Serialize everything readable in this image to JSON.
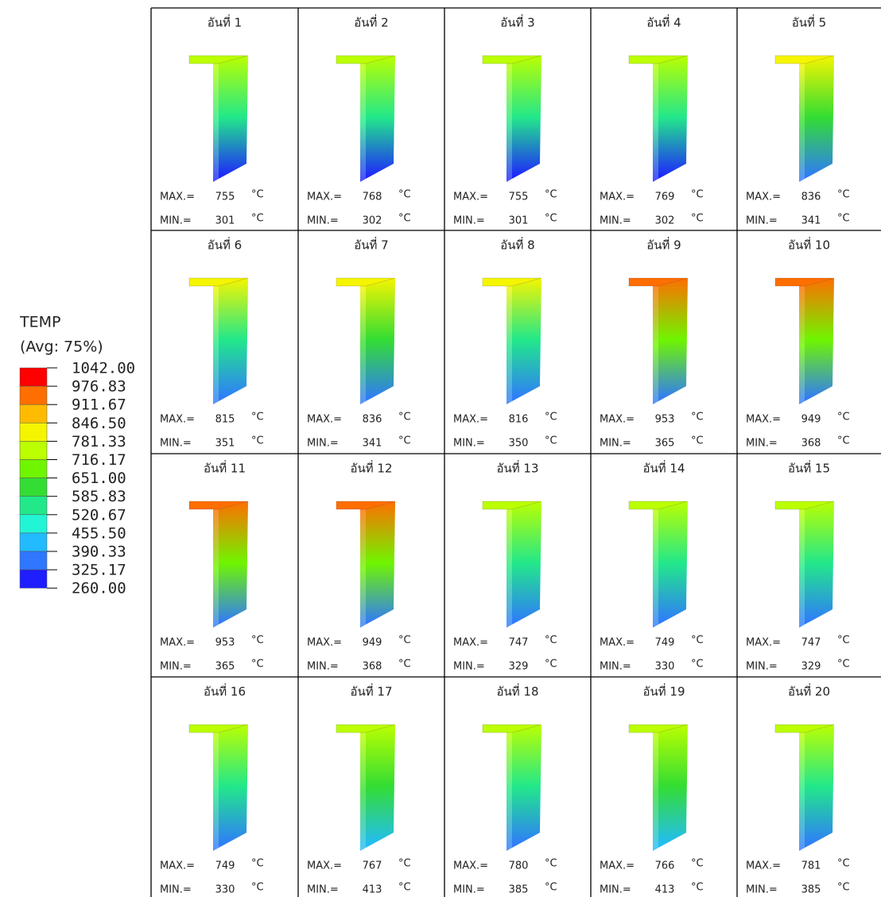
{
  "legend": {
    "title": "TEMP",
    "subtitle": "(Avg: 75%)",
    "levels": [
      "1042.00",
      "976.83",
      "911.67",
      "846.50",
      "781.33",
      "716.17",
      "651.00",
      "585.83",
      "520.67",
      "455.50",
      "390.33",
      "325.17",
      "260.00"
    ],
    "colors": [
      "#ff0000",
      "#ff6e00",
      "#ffbb00",
      "#f5f500",
      "#bbff00",
      "#6ff500",
      "#33dd33",
      "#22e88a",
      "#22f5d5",
      "#22bbff",
      "#2f77ff",
      "#1e1eff"
    ]
  },
  "labels": {
    "max": "MAX.=",
    "min": "MIN.=",
    "unit": "°C"
  },
  "cells": [
    {
      "label": "อันที่ 1",
      "max": 755,
      "min": 301
    },
    {
      "label": "อันที่ 2",
      "max": 768,
      "min": 302
    },
    {
      "label": "อันที่ 3",
      "max": 755,
      "min": 301
    },
    {
      "label": "อันที่ 4",
      "max": 769,
      "min": 302
    },
    {
      "label": "อันที่ 5",
      "max": 836,
      "min": 341
    },
    {
      "label": "อันที่ 6",
      "max": 815,
      "min": 351
    },
    {
      "label": "อันที่ 7",
      "max": 836,
      "min": 341
    },
    {
      "label": "อันที่ 8",
      "max": 816,
      "min": 350
    },
    {
      "label": "อันที่ 9",
      "max": 953,
      "min": 365
    },
    {
      "label": "อันที่ 10",
      "max": 949,
      "min": 368
    },
    {
      "label": "อันที่ 11",
      "max": 953,
      "min": 365
    },
    {
      "label": "อันที่ 12",
      "max": 949,
      "min": 368
    },
    {
      "label": "อันที่ 13",
      "max": 747,
      "min": 329
    },
    {
      "label": "อันที่ 14",
      "max": 749,
      "min": 330
    },
    {
      "label": "อันที่ 15",
      "max": 747,
      "min": 329
    },
    {
      "label": "อันที่ 16",
      "max": 749,
      "min": 330
    },
    {
      "label": "อันที่ 17",
      "max": 767,
      "min": 413
    },
    {
      "label": "อันที่ 18",
      "max": 780,
      "min": 385
    },
    {
      "label": "อันที่ 19",
      "max": 766,
      "min": 413
    },
    {
      "label": "อันที่ 20",
      "max": 781,
      "min": 385
    }
  ]
}
